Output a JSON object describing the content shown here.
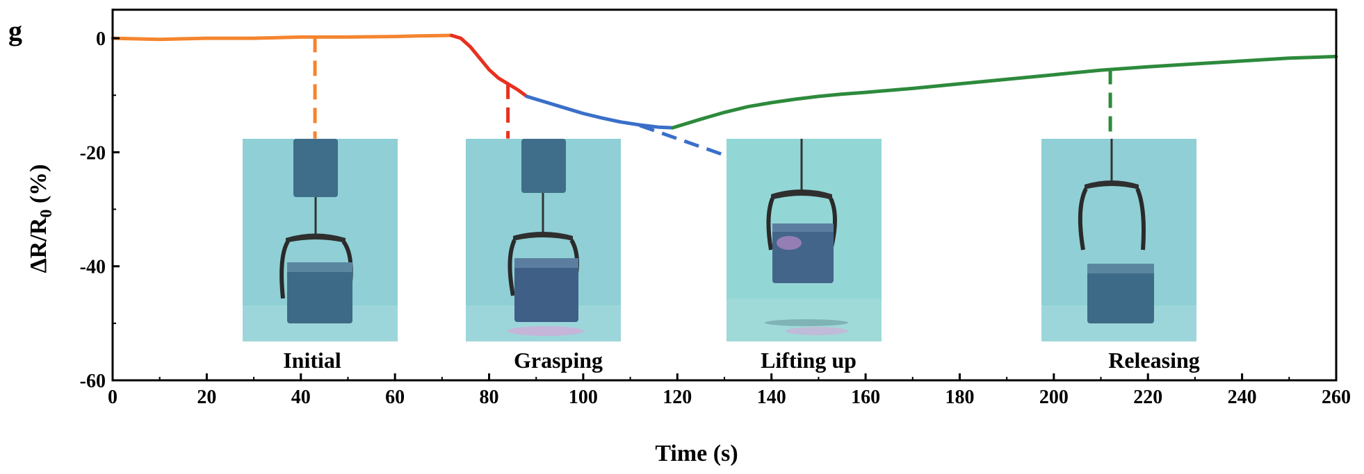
{
  "panel_letter": "g",
  "chart_data": {
    "type": "line",
    "title": "",
    "xlabel": "Time (s)",
    "ylabel_main": "ΔR/R",
    "ylabel_sub": "0",
    "ylabel_tail": " (%)",
    "xlim": [
      0,
      260
    ],
    "ylim": [
      -60,
      5
    ],
    "x_ticks": [
      0,
      20,
      40,
      60,
      80,
      100,
      120,
      140,
      160,
      180,
      200,
      220,
      240,
      260
    ],
    "y_ticks": [
      0,
      -20,
      -40,
      -60
    ],
    "grid": false,
    "series": [
      {
        "color": "#f4852f",
        "x": [
          0,
          10,
          20,
          30,
          40,
          50,
          60,
          65,
          72
        ],
        "y": [
          0,
          -0.2,
          0,
          0,
          0.2,
          0.2,
          0.3,
          0.4,
          0.5
        ]
      },
      {
        "color": "#e8301f",
        "x": [
          72,
          74,
          76,
          78,
          80,
          82,
          84,
          86,
          88
        ],
        "y": [
          0.5,
          0,
          -1.5,
          -3.5,
          -5.5,
          -7,
          -8,
          -9,
          -10.2
        ]
      },
      {
        "color": "#3a6fc9",
        "x": [
          88,
          92,
          96,
          100,
          104,
          108,
          112,
          116,
          119
        ],
        "y": [
          -10.2,
          -11.2,
          -12.2,
          -13.2,
          -14,
          -14.7,
          -15.2,
          -15.6,
          -15.7
        ]
      },
      {
        "color": "#2d8a3c",
        "x": [
          119,
          125,
          130,
          135,
          140,
          145,
          150,
          155,
          160,
          170,
          180,
          190,
          200,
          210,
          220,
          230,
          240,
          250,
          260
        ],
        "y": [
          -15.7,
          -14.2,
          -13,
          -12,
          -11.3,
          -10.7,
          -10.2,
          -9.8,
          -9.5,
          -8.8,
          -8,
          -7.2,
          -6.4,
          -5.6,
          -5,
          -4.5,
          -4,
          -3.5,
          -3.2
        ]
      }
    ],
    "annotations": [
      {
        "label": "Initial",
        "color": "#f4852f",
        "x": 43,
        "y_from": 0.2,
        "y_to": -17.6
      },
      {
        "label": "Grasping",
        "color": "#e8301f",
        "x": 84,
        "y_from": -8,
        "y_to": -17.6
      },
      {
        "label": "Lifting up",
        "color": "#3a6fc9",
        "x_from": 112,
        "y_from": -15.3,
        "x_to": 130,
        "y_to": -20.5
      },
      {
        "label": "Releasing",
        "color": "#2d8a3c",
        "x": 212,
        "y_from": -5.4,
        "y_to": -17.6
      }
    ]
  },
  "insets": [
    {
      "caption": "Initial",
      "photo": "gripper-above-sponge-photo"
    },
    {
      "caption": "Grasping",
      "photo": "gripper-grasping-sponge-photo"
    },
    {
      "caption": "Lifting up",
      "photo": "gripper-lifting-sponge-photo"
    },
    {
      "caption": "Releasing",
      "photo": "gripper-released-sponge-photo"
    }
  ],
  "colors": {
    "axis": "#000000",
    "photo_bg": "#8fd0d6",
    "sponge": "#3d6a86"
  }
}
